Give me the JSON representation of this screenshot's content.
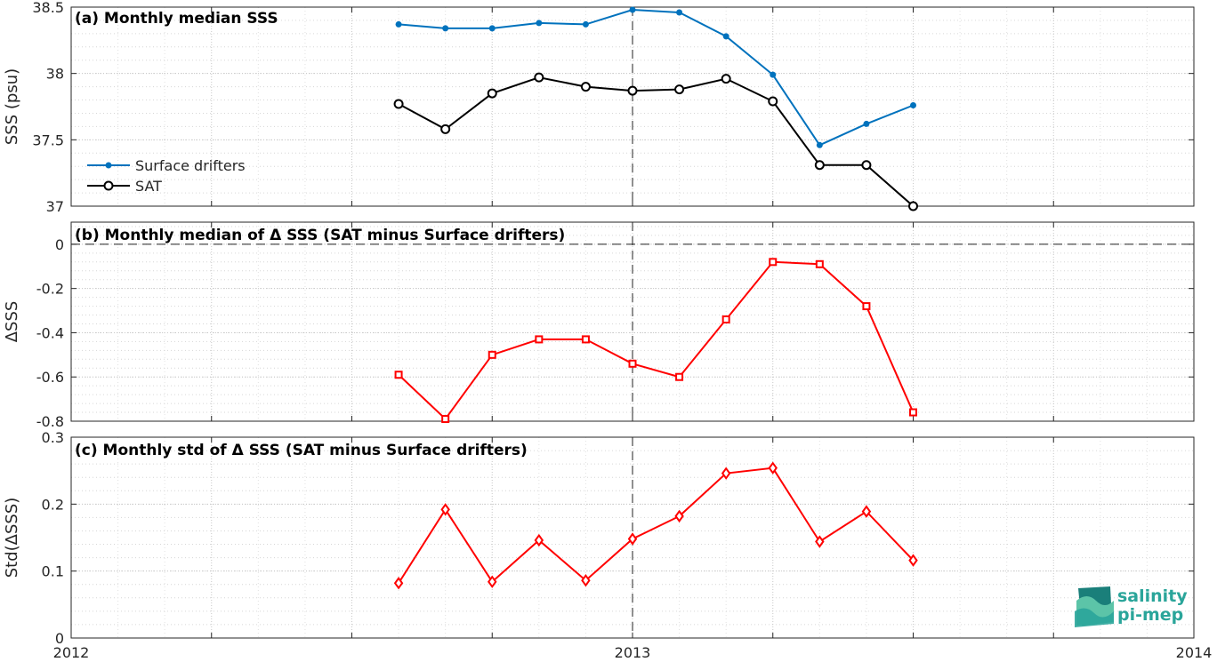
{
  "chart_data": [
    {
      "type": "line",
      "title": "(a) Monthly median SSS",
      "ylabel": "SSS (psu)",
      "ylim": [
        37,
        38.5
      ],
      "yticks": [
        "37",
        "37.5",
        "38",
        "38.5"
      ],
      "grid": true,
      "legend_position": "center-left",
      "x": [
        "2012-08",
        "2012-09",
        "2012-10",
        "2012-11",
        "2012-12",
        "2013-01",
        "2013-02",
        "2013-03",
        "2013-04",
        "2013-05",
        "2013-06",
        "2013-07"
      ],
      "series": [
        {
          "name": "Surface drifters",
          "color": "#0072BD",
          "marker": "dot",
          "values": [
            38.37,
            38.34,
            38.34,
            38.38,
            38.37,
            38.48,
            38.46,
            38.28,
            37.99,
            37.46,
            37.62,
            37.76
          ]
        },
        {
          "name": "SAT",
          "color": "#000000",
          "marker": "circle",
          "values": [
            37.77,
            37.58,
            37.85,
            37.97,
            37.9,
            37.87,
            37.88,
            37.96,
            37.79,
            37.31,
            37.31,
            37.0
          ]
        }
      ]
    },
    {
      "type": "line",
      "title": "(b) Monthly median of Δ SSS (SAT minus Surface drifters)",
      "ylabel": "ΔSSS",
      "ylim": [
        -0.8,
        0.1
      ],
      "yticks": [
        "0",
        "-0.2",
        "-0.4",
        "-0.6",
        "-0.8"
      ],
      "grid": true,
      "x": [
        "2012-08",
        "2012-09",
        "2012-10",
        "2012-11",
        "2012-12",
        "2013-01",
        "2013-02",
        "2013-03",
        "2013-04",
        "2013-05",
        "2013-06",
        "2013-07"
      ],
      "series": [
        {
          "color": "#FF0000",
          "marker": "square",
          "values": [
            -0.59,
            -0.79,
            -0.5,
            -0.43,
            -0.43,
            -0.54,
            -0.6,
            -0.34,
            -0.08,
            -0.09,
            -0.28,
            -0.76
          ]
        }
      ]
    },
    {
      "type": "line",
      "title": "(c) Monthly std of Δ SSS (SAT minus Surface drifters)",
      "ylabel": "Std(ΔSSS)",
      "ylim": [
        0,
        0.3
      ],
      "yticks": [
        "0",
        "0.1",
        "0.2",
        "0.3"
      ],
      "grid": true,
      "xlim": [
        "2012-01",
        "2014-01"
      ],
      "xticks": [
        "2012",
        "2013",
        "2014"
      ],
      "x": [
        "2012-08",
        "2012-09",
        "2012-10",
        "2012-11",
        "2012-12",
        "2013-01",
        "2013-02",
        "2013-03",
        "2013-04",
        "2013-05",
        "2013-06",
        "2013-07"
      ],
      "series": [
        {
          "color": "#FF0000",
          "marker": "diamond",
          "values": [
            0.082,
            0.192,
            0.084,
            0.146,
            0.086,
            0.148,
            0.182,
            0.246,
            0.254,
            0.144,
            0.189,
            0.116
          ]
        }
      ]
    }
  ],
  "logo": {
    "line1": "salinity",
    "line2": "pi-mep",
    "colors": [
      "#2aa59a",
      "#5cc4a8",
      "#1a7f7a"
    ]
  }
}
